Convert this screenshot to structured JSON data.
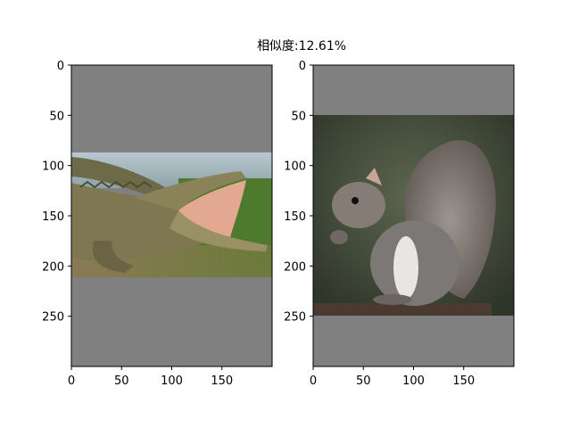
{
  "figure": {
    "title": "相似度:12.61%",
    "background_color": "#ffffff"
  },
  "chart_data": [
    {
      "type": "image",
      "subject": "crocodile",
      "image_size": [
        200,
        300
      ],
      "xlim": [
        0,
        200
      ],
      "ylim": [
        300,
        0
      ],
      "y_inverted": true,
      "xticks": [
        0,
        50,
        100,
        150
      ],
      "yticks": [
        0,
        50,
        100,
        150,
        200,
        250
      ],
      "padding_color": "#808080",
      "content_y_range": [
        88,
        212
      ],
      "grid": false
    },
    {
      "type": "image",
      "subject": "squirrel",
      "image_size": [
        200,
        300
      ],
      "xlim": [
        0,
        200
      ],
      "ylim": [
        300,
        0
      ],
      "y_inverted": true,
      "xticks": [
        0,
        50,
        100,
        150
      ],
      "yticks": [
        0,
        50,
        100,
        150,
        200,
        250
      ],
      "padding_color": "#808080",
      "content_y_range": [
        50,
        250
      ],
      "grid": false
    }
  ]
}
